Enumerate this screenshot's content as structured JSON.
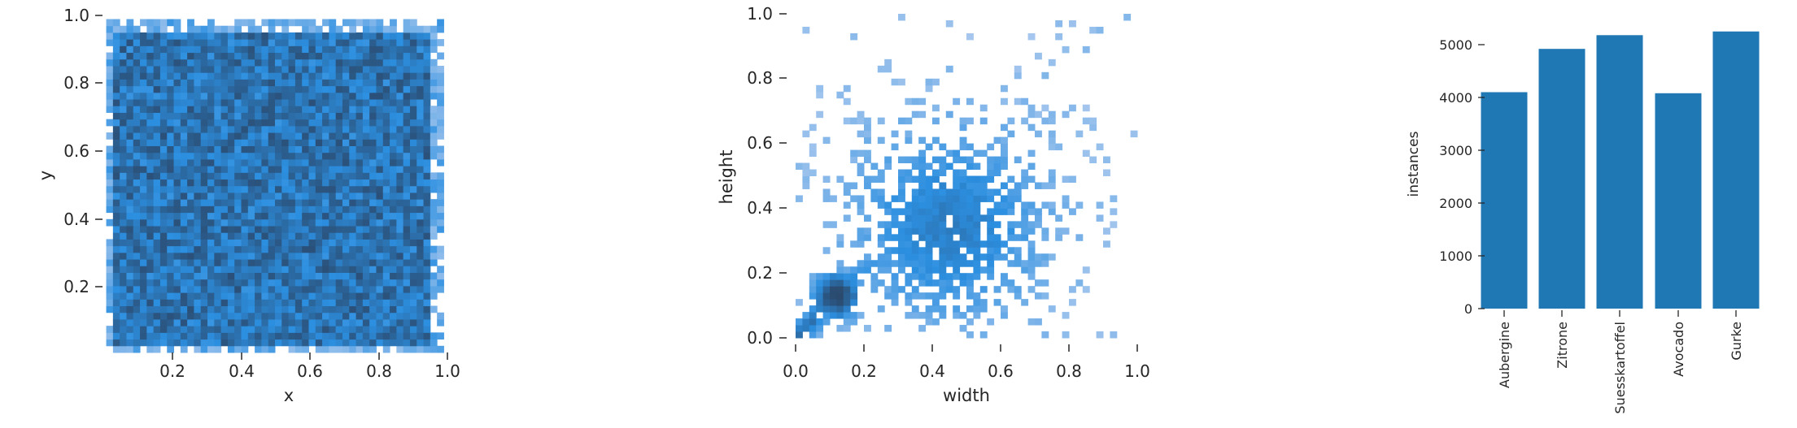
{
  "chart_data": [
    {
      "type": "heatmap",
      "xlabel": "x",
      "ylabel": "y",
      "xlim": [
        0.07,
        1.0
      ],
      "ylim": [
        0.08,
        1.0
      ],
      "xticks": [
        0.2,
        0.4,
        0.6,
        0.8,
        1.0
      ],
      "yticks": [
        0.2,
        0.4,
        0.6,
        0.8,
        1.0
      ],
      "xtick_labels": [
        "0.2",
        "0.4",
        "0.6",
        "0.8",
        "1.0"
      ],
      "ytick_labels": [
        "0.2",
        "0.4",
        "0.6",
        "0.8",
        "1.0"
      ],
      "bins": [
        50,
        50
      ],
      "density_description": "roughly uniform over x 0.1-0.95, y 0.1-0.95 with ragged edges",
      "color_low": "#a9c8ee",
      "color_mid": "#2c8fe0",
      "color_high": "#2b4a6e",
      "grid": false
    },
    {
      "type": "heatmap",
      "xlabel": "width",
      "ylabel": "height",
      "xlim": [
        0.0,
        1.0
      ],
      "ylim": [
        0.0,
        1.0
      ],
      "xticks": [
        0.0,
        0.2,
        0.4,
        0.6,
        0.8,
        1.0
      ],
      "yticks": [
        0.0,
        0.2,
        0.4,
        0.6,
        0.8,
        1.0
      ],
      "xtick_labels": [
        "0.0",
        "0.2",
        "0.4",
        "0.6",
        "0.8",
        "1.0"
      ],
      "ytick_labels": [
        "0.0",
        "0.2",
        "0.4",
        "0.6",
        "0.8",
        "1.0"
      ],
      "bins": [
        50,
        50
      ],
      "peak": [
        0.12,
        0.13
      ],
      "color_low": "#a9c8ee",
      "color_mid": "#2c8fe0",
      "color_high": "#2b4a6e",
      "grid": false
    },
    {
      "type": "bar",
      "categories": [
        "Aubergine",
        "Zitrone",
        "Suesskartoffel",
        "Avocado",
        "Gurke"
      ],
      "values": [
        4100,
        4920,
        5180,
        4080,
        5250
      ],
      "ylabel": "instances",
      "ylim": [
        0,
        5400
      ],
      "yticks": [
        0,
        1000,
        2000,
        3000,
        4000,
        5000
      ],
      "ytick_labels": [
        "0",
        "1000",
        "2000",
        "3000",
        "4000",
        "5000"
      ],
      "bar_color": "#1f77b4",
      "grid": false
    }
  ]
}
